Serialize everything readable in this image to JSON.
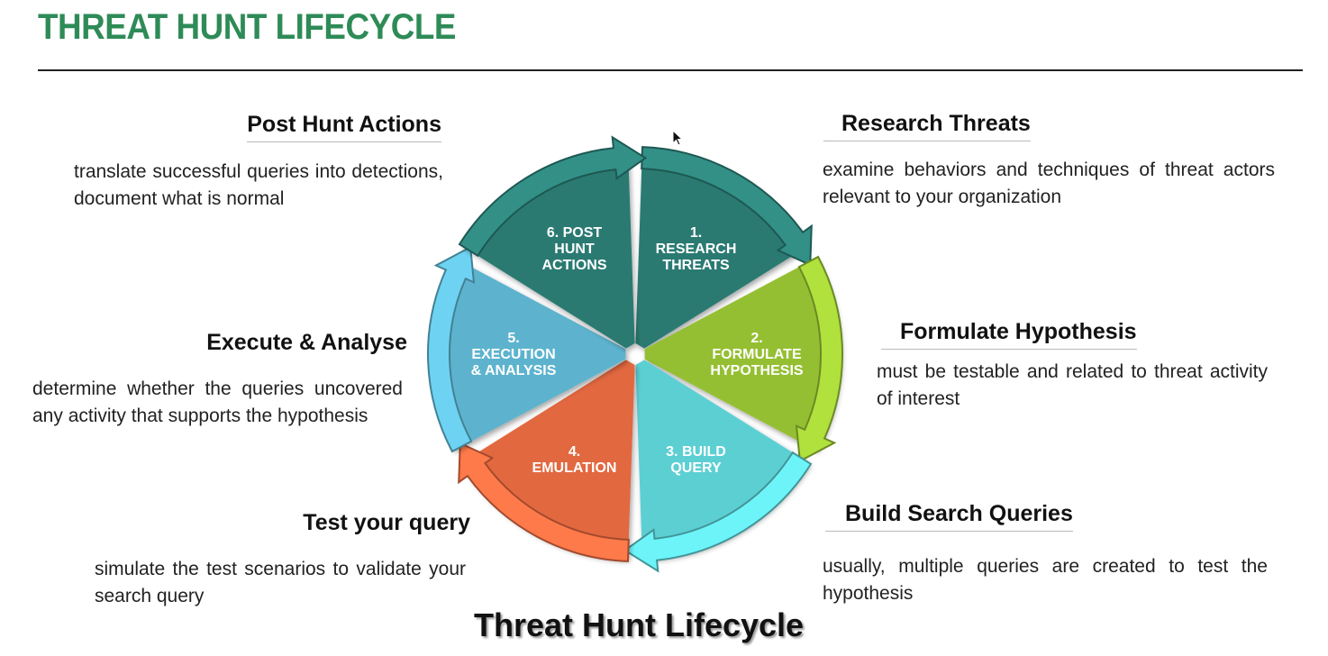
{
  "page_title": "THREAT HUNT LIFECYCLE",
  "caption": "Threat Hunt Lifecycle",
  "colors": {
    "title": "#2e8b57",
    "research": "#2a7a72",
    "hypothesis": "#95bf33",
    "build": "#5ccfd3",
    "emulation": "#e2673f",
    "execution": "#5db3ce",
    "post_hunt": "#2a7a72"
  },
  "cycle": [
    {
      "lines": [
        "1.",
        "RESEARCH",
        "THREATS"
      ]
    },
    {
      "lines": [
        "2.",
        "FORMULATE",
        "HYPOTHESIS"
      ]
    },
    {
      "lines": [
        "3. BUILD",
        "QUERY"
      ]
    },
    {
      "lines": [
        "4.",
        "EMULATION"
      ]
    },
    {
      "lines": [
        "5.",
        "EXECUTION",
        "& ANALYSIS"
      ]
    },
    {
      "lines": [
        "6. POST",
        "HUNT",
        "ACTIONS"
      ]
    }
  ],
  "steps": {
    "research": {
      "heading": "Research Threats",
      "text": "examine behaviors and techniques of threat actors relevant to your organization"
    },
    "hypothesis": {
      "heading": "Formulate Hypothesis",
      "text": "must be testable and related to threat activity of interest"
    },
    "build": {
      "heading": "Build Search Queries",
      "text": "usually, multiple queries are created to test the hypothesis"
    },
    "test": {
      "heading": "Test your query",
      "text": "simulate the test scenarios to validate your search query"
    },
    "execute": {
      "heading": "Execute & Analyse",
      "text": "determine whether the queries uncovered any activity that supports the hypothesis"
    },
    "post_hunt": {
      "heading": "Post Hunt Actions",
      "text": "translate successful queries into detections, document what is normal"
    }
  },
  "icons": {
    "cursor": "mouse-pointer-icon"
  }
}
